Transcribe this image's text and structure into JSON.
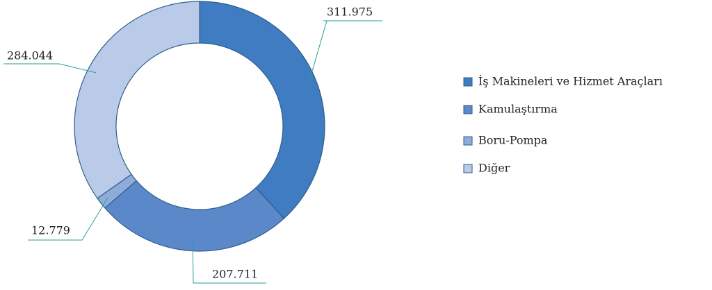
{
  "chart_data": {
    "type": "donut",
    "categories": [
      "İş Makineleri ve Hizmet Araçları",
      "Kamulaştırma",
      "Boru-Pompa",
      "Diğer"
    ],
    "values": [
      311.975,
      207.711,
      12.779,
      284.044
    ],
    "colors": [
      "#3f7cc2",
      "#5a88c9",
      "#8eacd9",
      "#b9cbe8"
    ],
    "legend": "right"
  }
}
